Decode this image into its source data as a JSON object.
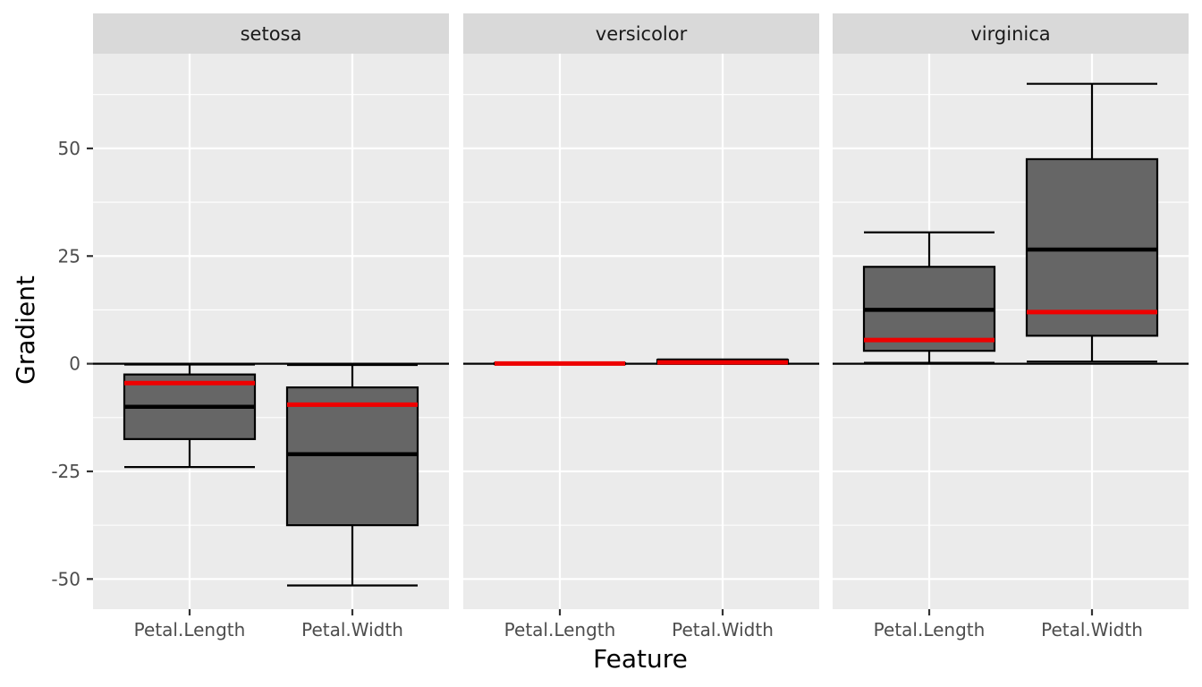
{
  "chart_data": {
    "type": "boxplot",
    "xlabel": "Feature",
    "ylabel": "Gradient",
    "categories": [
      "Petal.Length",
      "Petal.Width"
    ],
    "yticks": [
      -50,
      -25,
      0,
      25,
      50
    ],
    "ytick_labels": [
      "-50",
      "-25",
      "0",
      "25",
      "50"
    ],
    "ylim": [
      -57,
      72
    ],
    "grid": true,
    "reference_line": 0,
    "colors": {
      "panel_bg": "#ebebeb",
      "strip_bg": "#d9d9d9",
      "grid": "#ffffff",
      "box_fill": "#666666",
      "box_line": "#000000",
      "red_line": "#ee0000"
    },
    "panels": [
      {
        "label": "setosa",
        "boxes": [
          {
            "feature": "Petal.Length",
            "min": -24,
            "q1": -17.5,
            "median": -10,
            "q3": -2.5,
            "max": -0.2,
            "red": -4.5
          },
          {
            "feature": "Petal.Width",
            "min": -51.5,
            "q1": -37.5,
            "median": -21,
            "q3": -5.5,
            "max": -0.3,
            "red": -9.5
          }
        ]
      },
      {
        "label": "versicolor",
        "boxes": [
          {
            "feature": "Petal.Length",
            "min": -0.1,
            "q1": -0.1,
            "median": 0.05,
            "q3": 0.15,
            "max": 0.2,
            "red": 0.05
          },
          {
            "feature": "Petal.Width",
            "min": 0,
            "q1": 0,
            "median": 0.3,
            "q3": 0.9,
            "max": 1.0,
            "red": 0.3
          }
        ]
      },
      {
        "label": "virginica",
        "boxes": [
          {
            "feature": "Petal.Length",
            "min": 0.2,
            "q1": 3,
            "median": 12.5,
            "q3": 22.5,
            "max": 30.5,
            "red": 5.5
          },
          {
            "feature": "Petal.Width",
            "min": 0.5,
            "q1": 6.5,
            "median": 26.5,
            "q3": 47.5,
            "max": 65,
            "red": 12
          }
        ]
      }
    ]
  }
}
